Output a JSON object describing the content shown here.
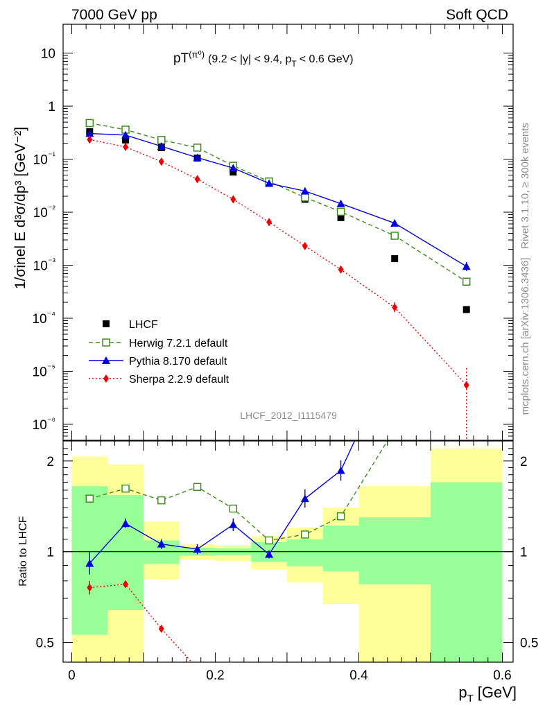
{
  "header": {
    "left": "7000 GeV pp",
    "right": "Soft QCD"
  },
  "side": {
    "rivet": "Rivet 3.1.10, ≥ 300k events",
    "mcplots": "mcplots.cern.ch [arXiv:1306.3436]"
  },
  "chart_data": [
    {
      "type": "line",
      "title_main": "pT",
      "title_sup": "(π⁰)",
      "title_range": "(9.2 < |y| < 9.4, p",
      "title_sub": "T",
      "title_cut": "< 0.6 GeV)",
      "ylabel": "1/σinel E d³σ/dp³ [GeV⁻²]",
      "watermark": "LHCF_2012_I1115479",
      "yscale": "log",
      "xlim": [
        -0.012,
        0.615
      ],
      "ylim": [
        5e-07,
        35
      ],
      "y_ticks": [
        "10",
        "1",
        "10⁻¹",
        "10⁻²",
        "10⁻³",
        "10⁻⁴",
        "10⁻⁵",
        "10⁻⁶"
      ],
      "legend_position": "bottom-left",
      "x_edges": [
        0.0,
        0.05,
        0.1,
        0.15,
        0.2,
        0.25,
        0.3,
        0.35,
        0.4,
        0.5,
        0.6
      ],
      "x": [
        0.025,
        0.075,
        0.125,
        0.175,
        0.225,
        0.275,
        0.325,
        0.375,
        0.45,
        0.55
      ],
      "series": [
        {
          "name": "LHCF",
          "color": "#000000",
          "marker": "filled-square",
          "values": [
            0.33,
            0.23,
            0.165,
            0.105,
            0.057,
            0.035,
            0.0175,
            0.0079,
            0.00133,
            0.000146
          ]
        },
        {
          "name": "Herwig 7.2.1 default",
          "color": "#3e8e1e",
          "marker": "open-square",
          "line": "dashed",
          "values": [
            0.48,
            0.36,
            0.23,
            0.165,
            0.075,
            0.038,
            0.019,
            0.0102,
            0.0036,
            0.00049
          ]
        },
        {
          "name": "Pythia 8.170 default",
          "color": "#0000dd",
          "marker": "filled-triangle",
          "line": "solid",
          "values": [
            0.305,
            0.285,
            0.175,
            0.107,
            0.068,
            0.035,
            0.025,
            0.0145,
            0.0062,
            0.00095
          ]
        },
        {
          "name": "Sherpa 2.2.9 default",
          "color": "#ee0000",
          "marker": "filled-diamond",
          "line": "dotted",
          "values": [
            0.235,
            0.17,
            0.09,
            0.042,
            0.0175,
            0.0065,
            0.0023,
            0.00083,
            0.00016,
            5.5e-06
          ]
        }
      ]
    },
    {
      "type": "line",
      "ylabel": "Ratio to LHCF",
      "xlabel_main": "p",
      "xlabel_sub": "T",
      "xlabel_unit": "[GeV]",
      "yscale": "log",
      "ylim": [
        0.43,
        2.33
      ],
      "y_ticks": [
        0.5,
        1,
        2
      ],
      "y_tick_labels": [
        "0.5",
        "1",
        "2"
      ],
      "x_ticks": [
        0,
        0.2,
        0.4,
        0.6
      ],
      "x_tick_labels": [
        "0",
        "0.2",
        "0.4",
        "0.6"
      ],
      "reference": 1,
      "band_1sigma": {
        "color": "#99ff99",
        "low": [
          0.53,
          0.64,
          0.91,
          0.97,
          0.975,
          0.925,
          0.895,
          0.86,
          0.78,
          0.415
        ],
        "high": [
          1.65,
          1.54,
          1.09,
          1.03,
          1.025,
          1.075,
          1.1,
          1.22,
          1.3,
          1.7
        ]
      },
      "band_2sigma": {
        "color": "#ffff99",
        "low": [
          0.37,
          0.37,
          0.81,
          0.94,
          0.93,
          0.875,
          0.79,
          0.67,
          0.43,
          0.37
        ],
        "high": [
          2.07,
          1.95,
          1.26,
          1.06,
          1.05,
          1.125,
          1.2,
          1.4,
          1.65,
          2.2
        ]
      },
      "series": [
        {
          "name": "Herwig 7.2.1 default",
          "color": "#3e8e1e",
          "values": [
            1.5,
            1.62,
            1.48,
            1.64,
            1.39,
            1.09,
            1.14,
            1.31,
            2.55
          ]
        },
        {
          "name": "Pythia 8.170 default",
          "color": "#0000dd",
          "values": [
            0.915,
            1.24,
            1.06,
            1.02,
            1.23,
            0.98,
            1.5,
            1.86,
            4.5
          ]
        },
        {
          "name": "Sherpa 2.2.9 default",
          "color": "#ee0000",
          "values": [
            0.76,
            0.78,
            0.555,
            0.41
          ]
        }
      ]
    }
  ]
}
